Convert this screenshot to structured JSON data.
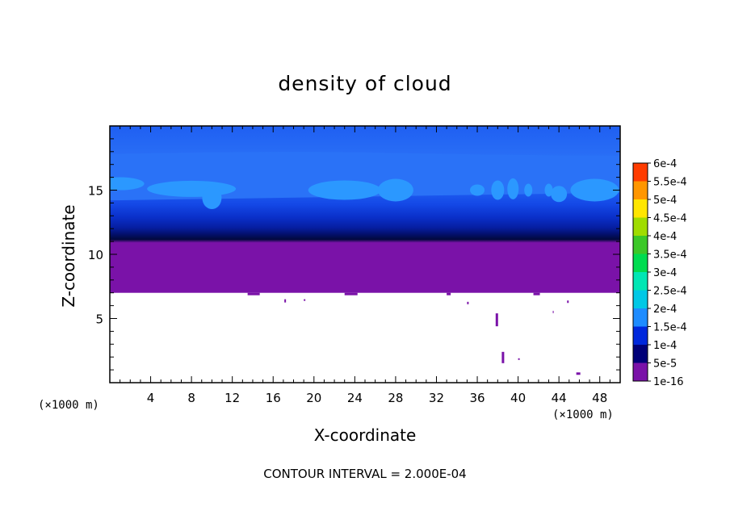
{
  "chart_data": {
    "type": "contour",
    "title": "density of cloud",
    "xlabel": "X-coordinate",
    "ylabel": "Z-coordinate",
    "x_unit": "(×1000 m)",
    "y_unit": "(×1000 m)",
    "xlim": [
      0,
      50
    ],
    "ylim": [
      0,
      20
    ],
    "x_ticks": [
      4,
      8,
      12,
      16,
      20,
      24,
      28,
      32,
      36,
      40,
      44,
      48
    ],
    "y_ticks": [
      5,
      10,
      15
    ],
    "cloud_base_z": 7,
    "cloud_top_z": 20,
    "colorbar": {
      "levels": [
        "1e-16",
        "5e-5",
        "1e-4",
        "1.5e-4",
        "2e-4",
        "2.5e-4",
        "3e-4",
        "3.5e-4",
        "4e-4",
        "4.5e-4",
        "5e-4",
        "5.5e-4",
        "6e-4"
      ],
      "colors": [
        "#7a12a8",
        "#000078",
        "#0028dc",
        "#1e8cff",
        "#00c8e6",
        "#00e6b4",
        "#00dc50",
        "#3cc828",
        "#a0dc00",
        "#ffe600",
        "#ff9600",
        "#ff3c00",
        "#ff8c8c"
      ]
    },
    "contour_interval_text": "CONTOUR INTERVAL = 2.000E-04"
  }
}
